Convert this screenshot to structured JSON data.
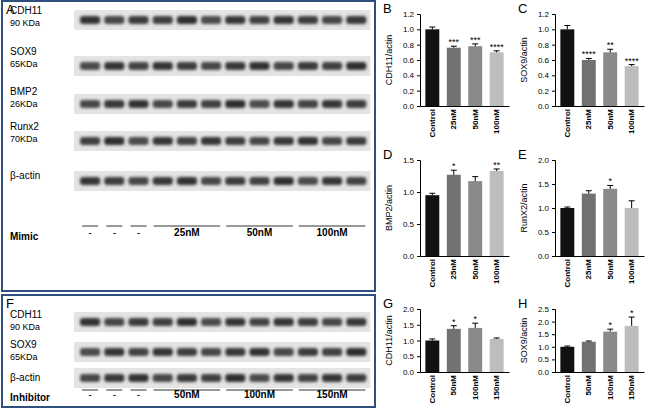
{
  "chart_data": [
    {
      "type": "bar",
      "title": "B",
      "y_label": "CDH11/actin",
      "categories": [
        "Control",
        "25nM",
        "50nM",
        "100nM"
      ],
      "values": [
        1.0,
        0.76,
        0.78,
        0.7
      ],
      "errors": [
        0.03,
        0.02,
        0.03,
        0.02
      ],
      "annotations": [
        null,
        "***",
        "***",
        "****"
      ],
      "colors": [
        "#111111",
        "#727272",
        "#8a8a8a",
        "#bdbdbd"
      ],
      "ylim": [
        0,
        1.2
      ],
      "yticks": [
        {
          "value": 0,
          "label": "0.0"
        },
        0.2,
        0.4,
        0.6,
        0.8,
        {
          "value": 1,
          "label": "1.0"
        },
        1.2
      ]
    },
    {
      "type": "bar",
      "title": "C",
      "y_label": "SOX9/actin",
      "categories": [
        "Control",
        "25nM",
        "50nM",
        "100nM"
      ],
      "values": [
        1.0,
        0.6,
        0.7,
        0.52
      ],
      "errors": [
        0.05,
        0.02,
        0.04,
        0.02
      ],
      "annotations": [
        null,
        "****",
        "**",
        "****"
      ],
      "colors": [
        "#111111",
        "#727272",
        "#8a8a8a",
        "#bdbdbd"
      ],
      "ylim": [
        0,
        1.2
      ],
      "yticks": [
        {
          "value": 0,
          "label": "0.0"
        },
        0.2,
        0.4,
        0.6,
        0.8,
        {
          "value": 1,
          "label": "1.0"
        },
        1.2
      ]
    },
    {
      "type": "bar",
      "title": "D",
      "y_label": "BMP2/actin",
      "categories": [
        "Control",
        "25nM",
        "50nM",
        "100nM"
      ],
      "values": [
        0.95,
        1.27,
        1.17,
        1.33
      ],
      "errors": [
        0.03,
        0.07,
        0.07,
        0.03
      ],
      "annotations": [
        null,
        "*",
        null,
        "**"
      ],
      "colors": [
        "#111111",
        "#727272",
        "#8a8a8a",
        "#bdbdbd"
      ],
      "ylim": [
        0,
        1.5
      ],
      "yticks": [
        {
          "value": 0,
          "label": "0.0"
        },
        0.5,
        {
          "value": 1,
          "label": "1.0"
        },
        1.5
      ]
    },
    {
      "type": "bar",
      "title": "E",
      "y_label": "RunX2/actin",
      "categories": [
        "Control",
        "25nM",
        "50nM",
        "100nM"
      ],
      "values": [
        1.0,
        1.3,
        1.4,
        1.0
      ],
      "errors": [
        0.02,
        0.06,
        0.07,
        0.15
      ],
      "annotations": [
        null,
        null,
        "*",
        null
      ],
      "colors": [
        "#111111",
        "#727272",
        "#8a8a8a",
        "#bdbdbd"
      ],
      "ylim": [
        0,
        2
      ],
      "yticks": [
        {
          "value": 0,
          "label": "0.0"
        },
        0.5,
        {
          "value": 1,
          "label": "1.0"
        },
        1.5,
        {
          "value": 2,
          "label": "2.0"
        }
      ]
    },
    {
      "type": "bar",
      "title": "G",
      "y_label": "CDH11/actin",
      "categories": [
        "Control",
        "50nM",
        "100nM",
        "150nM"
      ],
      "values": [
        1.0,
        1.37,
        1.4,
        1.05
      ],
      "errors": [
        0.05,
        0.1,
        0.15,
        0.03
      ],
      "annotations": [
        null,
        "*",
        "*",
        null
      ],
      "colors": [
        "#111111",
        "#727272",
        "#8a8a8a",
        "#bdbdbd"
      ],
      "ylim": [
        0,
        2
      ],
      "yticks": [
        {
          "value": 0,
          "label": "0.0"
        },
        0.5,
        {
          "value": 1,
          "label": "1.0"
        },
        1.5,
        {
          "value": 2,
          "label": "2.0"
        }
      ]
    },
    {
      "type": "bar",
      "title": "H",
      "y_label": "SOX9/actin",
      "categories": [
        "Control",
        "50nM",
        "100nM",
        "150nM"
      ],
      "values": [
        1.0,
        1.2,
        1.6,
        1.83
      ],
      "errors": [
        0.03,
        0.03,
        0.1,
        0.35
      ],
      "annotations": [
        null,
        null,
        "*",
        "*"
      ],
      "colors": [
        "#111111",
        "#727272",
        "#8a8a8a",
        "#bdbdbd"
      ],
      "ylim": [
        0,
        2.5
      ],
      "yticks": [
        {
          "value": 0,
          "label": "0.0"
        },
        0.5,
        {
          "value": 1,
          "label": "1.0"
        },
        1.5,
        {
          "value": 2,
          "label": "2.0"
        },
        2.5
      ]
    }
  ],
  "blots": [
    {
      "label": "A",
      "treatment": "Mimic",
      "rows": [
        {
          "name": "CDH11",
          "size": "90 KDa"
        },
        {
          "name": "SOX9",
          "size": "65KDa"
        },
        {
          "name": "BMP2",
          "size": "26KDa"
        },
        {
          "name": "Runx2",
          "size": "70KDa"
        },
        {
          "name": "β-actin"
        }
      ],
      "control_labels": [
        "-",
        "-",
        "-"
      ],
      "groups": [
        "25nM",
        "50nM",
        "100nM"
      ]
    },
    {
      "label": "F",
      "treatment": "Inhibitor",
      "rows": [
        {
          "name": "CDH11",
          "size": "90 KDa"
        },
        {
          "name": "SOX9",
          "size": "65KDa"
        },
        {
          "name": "β-actin"
        }
      ],
      "control_labels": [
        "-",
        "-",
        "-"
      ],
      "groups": [
        "50nM",
        "100nM",
        "150nM"
      ]
    }
  ]
}
